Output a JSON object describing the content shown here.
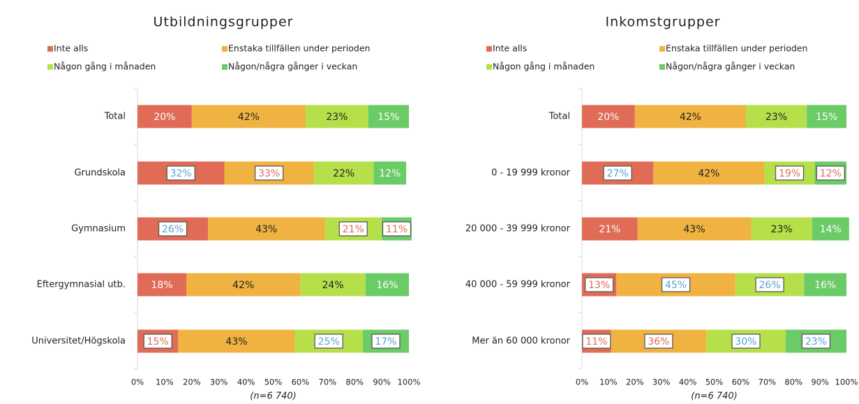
{
  "chart_data": [
    {
      "type": "stacked_bar_horizontal",
      "title": "Utbildningsgrupper",
      "categories": [
        "Total",
        "Grundskola",
        "Gymnasium",
        "Eftergymnasial utb.",
        "Universitet/Högskola"
      ],
      "series": [
        {
          "name": "Inte alls",
          "color": "#e06b56",
          "values": [
            20,
            32,
            26,
            18,
            15
          ],
          "value_labels": [
            "20%",
            "32%",
            "26%",
            "18%",
            "15%"
          ],
          "label_box_colors": [
            null,
            "#5ba3d0",
            "#5ba3d0",
            null,
            "#e06b56"
          ]
        },
        {
          "name": "Enstaka tillfällen under perioden",
          "color": "#f0b341",
          "values": [
            42,
            33,
            43,
            42,
            43
          ],
          "value_labels": [
            "42%",
            "33%",
            "43%",
            "42%",
            "43%"
          ],
          "label_box_colors": [
            null,
            "#e06b56",
            null,
            null,
            null
          ]
        },
        {
          "name": "Någon gång i månaden",
          "color": "#b5e04a",
          "values": [
            23,
            22,
            21,
            24,
            25
          ],
          "value_labels": [
            "23%",
            "22%",
            "21%",
            "24%",
            "25%"
          ],
          "label_box_colors": [
            null,
            null,
            "#e06b56",
            null,
            "#5ba3d0"
          ]
        },
        {
          "name": "Någon/några gånger i veckan",
          "color": "#6acb67",
          "values": [
            15,
            12,
            11,
            16,
            17
          ],
          "value_labels": [
            "15%",
            "12%",
            "11%",
            "16%",
            "17%"
          ],
          "label_box_colors": [
            null,
            null,
            "#e06b56",
            null,
            "#5ba3d0"
          ]
        }
      ],
      "xlim": [
        0,
        100
      ],
      "xticks": [
        {
          "value": 0,
          "label": "0%"
        },
        {
          "value": 10,
          "label": "10%"
        },
        {
          "value": 20,
          "label": "20%"
        },
        {
          "value": 30,
          "label": "30%"
        },
        {
          "value": 40,
          "label": "40%"
        },
        {
          "value": 50,
          "label": "50%"
        },
        {
          "value": 60,
          "label": "60%"
        },
        {
          "value": 70,
          "label": "70%"
        },
        {
          "value": 80,
          "label": "80%"
        },
        {
          "value": 90,
          "label": "90%"
        },
        {
          "value": 100,
          "label": "100%"
        }
      ],
      "xlabel": "(n=6 740)",
      "grid": false
    },
    {
      "type": "stacked_bar_horizontal",
      "title": "Inkomstgrupper",
      "categories": [
        "Total",
        "0 - 19 999 kronor",
        "20 000 - 39 999 kronor",
        "40 000 - 59 999 kronor",
        "Mer än 60 000 kronor"
      ],
      "series": [
        {
          "name": "Inte alls",
          "color": "#e06b56",
          "values": [
            20,
            27,
            21,
            13,
            11
          ],
          "value_labels": [
            "20%",
            "27%",
            "21%",
            "13%",
            "11%"
          ],
          "label_box_colors": [
            null,
            "#5ba3d0",
            null,
            "#e06b56",
            "#e06b56"
          ]
        },
        {
          "name": "Enstaka tillfällen under perioden",
          "color": "#f0b341",
          "values": [
            42,
            42,
            43,
            45,
            36
          ],
          "value_labels": [
            "42%",
            "42%",
            "43%",
            "45%",
            "36%"
          ],
          "label_box_colors": [
            null,
            null,
            null,
            "#5ba3d0",
            "#e06b56"
          ]
        },
        {
          "name": "Någon gång i månaden",
          "color": "#b5e04a",
          "values": [
            23,
            19,
            23,
            26,
            30
          ],
          "value_labels": [
            "23%",
            "19%",
            "23%",
            "26%",
            "30%"
          ],
          "label_box_colors": [
            null,
            "#e06b56",
            null,
            "#5ba3d0",
            "#5ba3d0"
          ]
        },
        {
          "name": "Någon/några gånger i veckan",
          "color": "#6acb67",
          "values": [
            15,
            12,
            14,
            16,
            23
          ],
          "value_labels": [
            "15%",
            "12%",
            "14%",
            "16%",
            "23%"
          ],
          "label_box_colors": [
            null,
            "#e06b56",
            null,
            null,
            "#5ba3d0"
          ]
        }
      ],
      "xlim": [
        0,
        100
      ],
      "xticks": [
        {
          "value": 0,
          "label": "0%"
        },
        {
          "value": 10,
          "label": "10%"
        },
        {
          "value": 20,
          "label": "20%"
        },
        {
          "value": 30,
          "label": "30%"
        },
        {
          "value": 40,
          "label": "40%"
        },
        {
          "value": 50,
          "label": "50%"
        },
        {
          "value": 60,
          "label": "60%"
        },
        {
          "value": 70,
          "label": "70%"
        },
        {
          "value": 80,
          "label": "80%"
        },
        {
          "value": 90,
          "label": "90%"
        },
        {
          "value": 100,
          "label": "100%"
        }
      ],
      "xlabel": "(n=6 740)",
      "grid": false
    }
  ]
}
